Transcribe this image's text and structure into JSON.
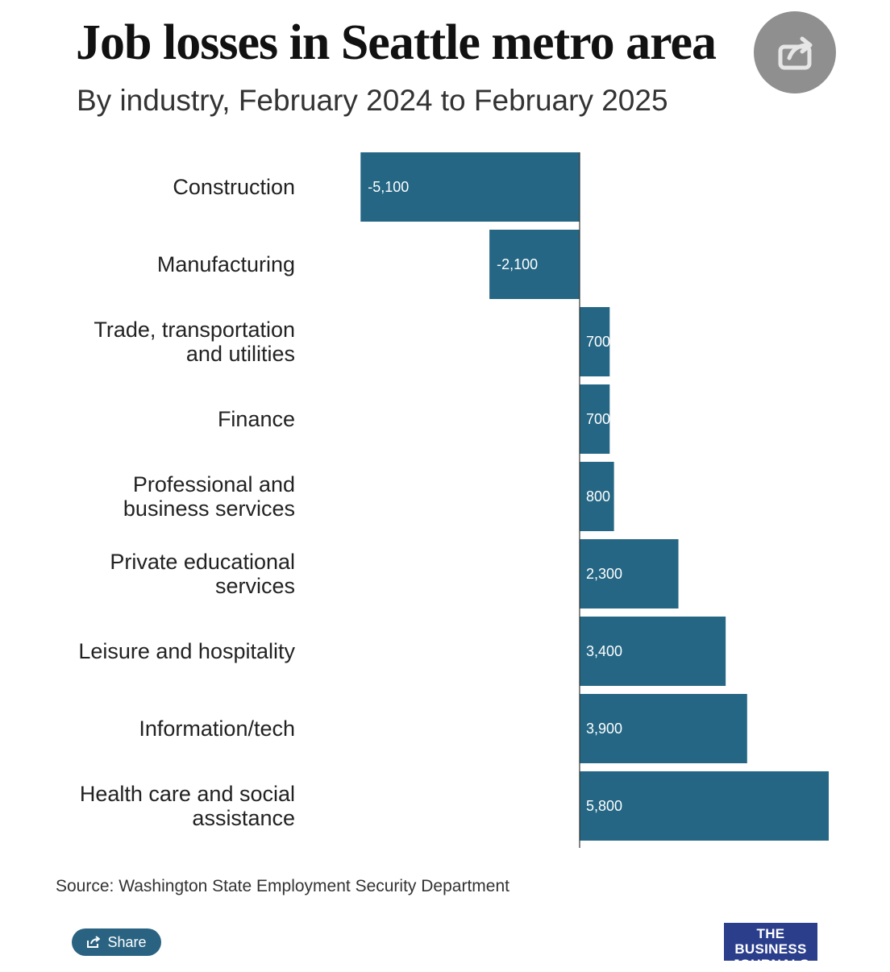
{
  "header": {
    "title": "Job losses in Seattle metro area",
    "subtitle": "By industry, February 2024 to February 2025"
  },
  "footer": {
    "source": "Source: Washington State Employment Security Department",
    "share_label": "Share",
    "logo_line1": "THE BUSINESS",
    "logo_line2": "JOURNALS"
  },
  "icons": {
    "floating_share": "share-arrow-icon",
    "share_button": "share-box-icon"
  },
  "colors": {
    "bar": "#246684",
    "share_button": "#2a6382",
    "logo_bg": "#2b3e8c"
  },
  "chart_data": {
    "type": "bar",
    "orientation": "horizontal",
    "title": "Job losses in Seattle metro area",
    "subtitle": "By industry, February 2024 to February 2025",
    "categories": [
      "Construction",
      "Manufacturing",
      "Trade, transportation and utilities",
      "Finance",
      "Professional and business services",
      "Private educational services",
      "Leisure and hospitality",
      "Information/tech",
      "Health care and social assistance"
    ],
    "category_lines": [
      [
        "Construction"
      ],
      [
        "Manufacturing"
      ],
      [
        "Trade, transportation",
        "and utilities"
      ],
      [
        "Finance"
      ],
      [
        "Professional and",
        "business services"
      ],
      [
        "Private educational",
        "services"
      ],
      [
        "Leisure and hospitality"
      ],
      [
        "Information/tech"
      ],
      [
        "Health care and social",
        "assistance"
      ]
    ],
    "values": [
      -5100,
      -2100,
      700,
      700,
      800,
      2300,
      3400,
      3900,
      5800
    ],
    "value_labels": [
      "-5,100",
      "-2,100",
      "700",
      "700",
      "800",
      "2,300",
      "3,400",
      "3,900",
      "5,800"
    ],
    "xlim": [
      -5100,
      5800
    ],
    "grid": false,
    "legend": "none"
  }
}
